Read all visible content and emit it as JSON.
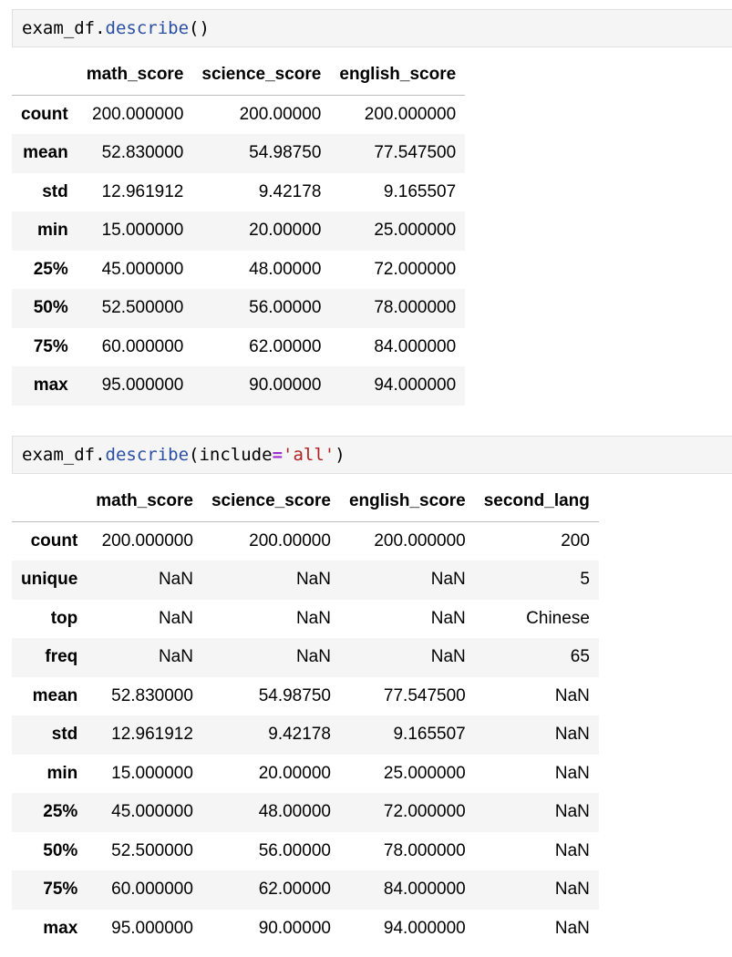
{
  "cell1": {
    "obj": "exam_df.",
    "method": "describe",
    "paren_open": "(",
    "paren_close": ")"
  },
  "cell2": {
    "obj": "exam_df.",
    "method": "describe",
    "paren_open": "(",
    "arg_name": "include",
    "op": "=",
    "arg_value": "'all'",
    "paren_close": ")"
  },
  "table1": {
    "columns": [
      "math_score",
      "science_score",
      "english_score"
    ],
    "rows": [
      {
        "label": "count",
        "values": [
          "200.000000",
          "200.00000",
          "200.000000"
        ]
      },
      {
        "label": "mean",
        "values": [
          "52.830000",
          "54.98750",
          "77.547500"
        ]
      },
      {
        "label": "std",
        "values": [
          "12.961912",
          "9.42178",
          "9.165507"
        ]
      },
      {
        "label": "min",
        "values": [
          "15.000000",
          "20.00000",
          "25.000000"
        ]
      },
      {
        "label": "25%",
        "values": [
          "45.000000",
          "48.00000",
          "72.000000"
        ]
      },
      {
        "label": "50%",
        "values": [
          "52.500000",
          "56.00000",
          "78.000000"
        ]
      },
      {
        "label": "75%",
        "values": [
          "60.000000",
          "62.00000",
          "84.000000"
        ]
      },
      {
        "label": "max",
        "values": [
          "95.000000",
          "90.00000",
          "94.000000"
        ]
      }
    ]
  },
  "table2": {
    "columns": [
      "math_score",
      "science_score",
      "english_score",
      "second_lang"
    ],
    "rows": [
      {
        "label": "count",
        "values": [
          "200.000000",
          "200.00000",
          "200.000000",
          "200"
        ]
      },
      {
        "label": "unique",
        "values": [
          "NaN",
          "NaN",
          "NaN",
          "5"
        ]
      },
      {
        "label": "top",
        "values": [
          "NaN",
          "NaN",
          "NaN",
          "Chinese"
        ]
      },
      {
        "label": "freq",
        "values": [
          "NaN",
          "NaN",
          "NaN",
          "65"
        ]
      },
      {
        "label": "mean",
        "values": [
          "52.830000",
          "54.98750",
          "77.547500",
          "NaN"
        ]
      },
      {
        "label": "std",
        "values": [
          "12.961912",
          "9.42178",
          "9.165507",
          "NaN"
        ]
      },
      {
        "label": "min",
        "values": [
          "15.000000",
          "20.00000",
          "25.000000",
          "NaN"
        ]
      },
      {
        "label": "25%",
        "values": [
          "45.000000",
          "48.00000",
          "72.000000",
          "NaN"
        ]
      },
      {
        "label": "50%",
        "values": [
          "52.500000",
          "56.00000",
          "78.000000",
          "NaN"
        ]
      },
      {
        "label": "75%",
        "values": [
          "60.000000",
          "62.00000",
          "84.000000",
          "NaN"
        ]
      },
      {
        "label": "max",
        "values": [
          "95.000000",
          "90.00000",
          "94.000000",
          "NaN"
        ]
      }
    ]
  }
}
